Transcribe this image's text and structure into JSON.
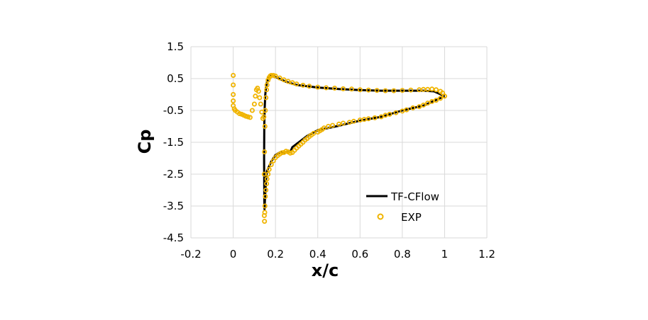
{
  "chart_data": {
    "type": "scatter",
    "title": "",
    "xlabel": "x/c",
    "ylabel": "Cp",
    "xlim": [
      -0.2,
      1.2
    ],
    "ylim": [
      -4.5,
      1.5
    ],
    "x_ticks": [
      -0.2,
      0,
      0.2,
      0.4,
      0.6,
      0.8,
      1,
      1.2
    ],
    "y_ticks": [
      1.5,
      0.5,
      -0.5,
      -1.5,
      -2.5,
      -3.5,
      -4.5
    ],
    "x_tick_labels": [
      "-0.2",
      "0",
      "0.2",
      "0.4",
      "0.6",
      "0.8",
      "1",
      "1.2"
    ],
    "y_tick_labels": [
      "1.5",
      "0.5",
      "-0.5",
      "-1.5",
      "-2.5",
      "-3.5",
      "-4.5"
    ],
    "grid": true,
    "legend_position": "bottom-right",
    "series": [
      {
        "name": "TF-CFlow",
        "kind": "line",
        "color": "#000000",
        "x": [
          1.0,
          0.95,
          0.9,
          0.8,
          0.7,
          0.6,
          0.5,
          0.4,
          0.35,
          0.3,
          0.28,
          0.27,
          0.25,
          0.22,
          0.2,
          0.18,
          0.16,
          0.155,
          0.15,
          0.148,
          0.147,
          0.146,
          0.147,
          0.149,
          0.152,
          0.155,
          0.16,
          0.17,
          0.18,
          0.19,
          0.2,
          0.25,
          0.3,
          0.4,
          0.5,
          0.6,
          0.7,
          0.8,
          0.9,
          0.95,
          1.0
        ],
        "y": [
          -0.05,
          -0.2,
          -0.35,
          -0.5,
          -0.7,
          -0.82,
          -0.98,
          -1.12,
          -1.3,
          -1.55,
          -1.65,
          -1.8,
          -1.82,
          -1.82,
          -1.9,
          -2.1,
          -2.4,
          -2.7,
          -3.3,
          -3.6,
          -3.3,
          -2.0,
          -0.9,
          -0.4,
          0.0,
          0.2,
          0.4,
          0.55,
          0.6,
          0.58,
          0.55,
          0.4,
          0.3,
          0.22,
          0.17,
          0.14,
          0.12,
          0.12,
          0.12,
          0.1,
          -0.05
        ]
      },
      {
        "name": "EXP",
        "kind": "markers",
        "color": "#f0b400",
        "x": [
          1.0,
          0.98,
          0.96,
          0.94,
          0.92,
          0.9,
          0.88,
          0.85,
          0.82,
          0.8,
          0.77,
          0.74,
          0.72,
          0.7,
          0.67,
          0.64,
          0.62,
          0.6,
          0.57,
          0.55,
          0.52,
          0.5,
          0.47,
          0.45,
          0.43,
          0.42,
          0.41,
          0.4,
          0.38,
          0.37,
          0.36,
          0.35,
          0.34,
          0.33,
          0.32,
          0.31,
          0.3,
          0.29,
          0.28,
          0.27,
          0.26,
          0.25,
          0.24,
          0.23,
          0.22,
          0.21,
          0.2,
          0.19,
          0.18,
          0.17,
          0.165,
          0.16,
          0.158,
          0.155,
          0.152,
          0.15,
          0.149,
          0.148,
          0.147,
          0.147,
          0.148,
          0.15,
          0.152,
          0.155,
          0.158,
          0.16,
          0.165,
          0.17,
          0.175,
          0.18,
          0.19,
          0.2,
          0.22,
          0.24,
          0.26,
          0.28,
          0.3,
          0.33,
          0.36,
          0.4,
          0.44,
          0.48,
          0.52,
          0.56,
          0.6,
          0.64,
          0.68,
          0.72,
          0.76,
          0.8,
          0.84,
          0.88,
          0.9,
          0.92,
          0.94,
          0.96,
          0.98,
          0.99,
          1.0,
          0.0,
          0.0,
          0.0,
          0.0,
          0.0,
          0.005,
          0.01,
          0.02,
          0.03,
          0.04,
          0.05,
          0.06,
          0.07,
          0.08,
          0.09,
          0.1,
          0.105,
          0.11,
          0.115,
          0.12,
          0.125,
          0.13,
          0.135,
          0.14,
          0.145
        ],
        "y": [
          -0.05,
          -0.12,
          -0.18,
          -0.22,
          -0.27,
          -0.33,
          -0.38,
          -0.42,
          -0.48,
          -0.52,
          -0.57,
          -0.62,
          -0.65,
          -0.7,
          -0.73,
          -0.76,
          -0.78,
          -0.8,
          -0.84,
          -0.87,
          -0.9,
          -0.93,
          -0.97,
          -1.0,
          -1.05,
          -1.1,
          -1.14,
          -1.18,
          -1.22,
          -1.27,
          -1.32,
          -1.38,
          -1.43,
          -1.5,
          -1.56,
          -1.62,
          -1.68,
          -1.75,
          -1.82,
          -1.84,
          -1.8,
          -1.78,
          -1.82,
          -1.83,
          -1.87,
          -1.92,
          -1.98,
          -2.08,
          -2.2,
          -2.35,
          -2.5,
          -2.65,
          -2.8,
          -3.0,
          -3.2,
          -3.5,
          -3.7,
          -3.98,
          -3.8,
          -2.5,
          -1.8,
          -1.0,
          -0.5,
          -0.1,
          0.15,
          0.3,
          0.45,
          0.53,
          0.58,
          0.6,
          0.6,
          0.58,
          0.52,
          0.46,
          0.41,
          0.37,
          0.33,
          0.29,
          0.26,
          0.23,
          0.21,
          0.2,
          0.18,
          0.17,
          0.15,
          0.14,
          0.13,
          0.12,
          0.12,
          0.13,
          0.14,
          0.15,
          0.16,
          0.16,
          0.17,
          0.15,
          0.1,
          0.05,
          -0.05,
          0.6,
          0.3,
          0.0,
          -0.2,
          -0.35,
          -0.45,
          -0.5,
          -0.55,
          -0.6,
          -0.62,
          -0.65,
          -0.68,
          -0.7,
          -0.72,
          -0.5,
          -0.3,
          -0.05,
          0.15,
          0.2,
          0.1,
          -0.1,
          -0.3,
          -0.55,
          -0.75,
          -0.7
        ]
      }
    ]
  }
}
